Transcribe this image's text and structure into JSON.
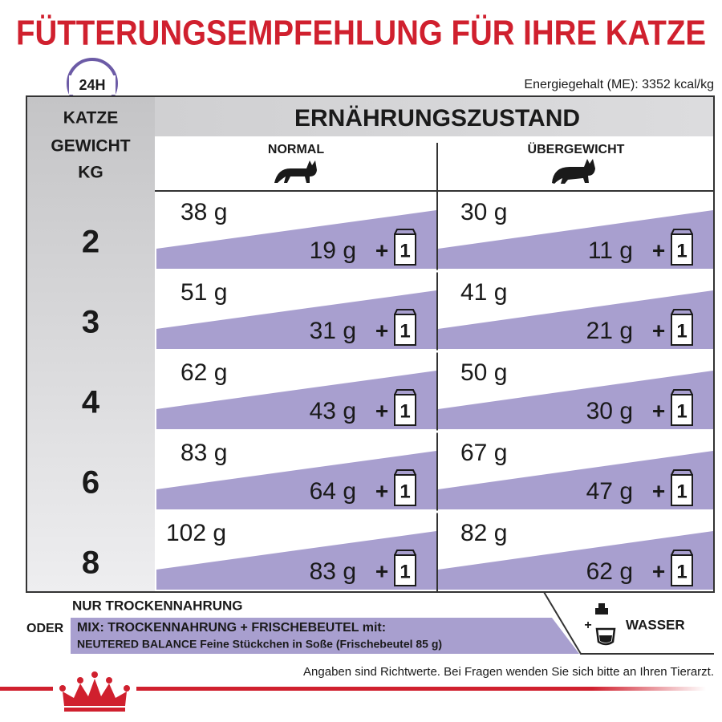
{
  "title": "FÜTTERUNGSEMPFEHLUNG FÜR IHRE KATZE",
  "clock_label": "24H",
  "energy": "Energiegehalt (ME): 3352 kcal/kg",
  "table": {
    "weight_header": [
      "KATZE",
      "GEWICHT",
      "KG"
    ],
    "condition_header": "ERNÄHRUNGSZUSTAND",
    "columns": [
      "NORMAL",
      "ÜBERGEWICHT"
    ],
    "plus": "+",
    "pouch": "1",
    "rows": [
      {
        "weight": "2",
        "cells": [
          {
            "dry": "38 g",
            "mix": "19 g"
          },
          {
            "dry": "30 g",
            "mix": "11 g"
          }
        ]
      },
      {
        "weight": "3",
        "cells": [
          {
            "dry": "51 g",
            "mix": "31 g"
          },
          {
            "dry": "41 g",
            "mix": "21 g"
          }
        ]
      },
      {
        "weight": "4",
        "cells": [
          {
            "dry": "62 g",
            "mix": "43 g"
          },
          {
            "dry": "50 g",
            "mix": "30 g"
          }
        ]
      },
      {
        "weight": "6",
        "cells": [
          {
            "dry": "83 g",
            "mix": "64 g"
          },
          {
            "dry": "67 g",
            "mix": "47 g"
          }
        ]
      },
      {
        "weight": "8",
        "cells": [
          {
            "dry": "102 g",
            "mix": "83 g"
          },
          {
            "dry": "82 g",
            "mix": "62 g"
          }
        ]
      }
    ]
  },
  "legend": {
    "dry_only": "NUR TROCKENNAHRUNG",
    "or": "ODER",
    "mix": "MIX: TROCKENNAHRUNG + FRISCHEBEUTEL mit:",
    "mix_product": "NEUTERED BALANCE Feine Stückchen in Soße (Frischebeutel 85 g)",
    "water_plus": "+",
    "water": "WASSER"
  },
  "footer": "Angaben sind Richtwerte. Bei Fragen wenden Sie sich bitte an Ihren Tierarzt."
}
